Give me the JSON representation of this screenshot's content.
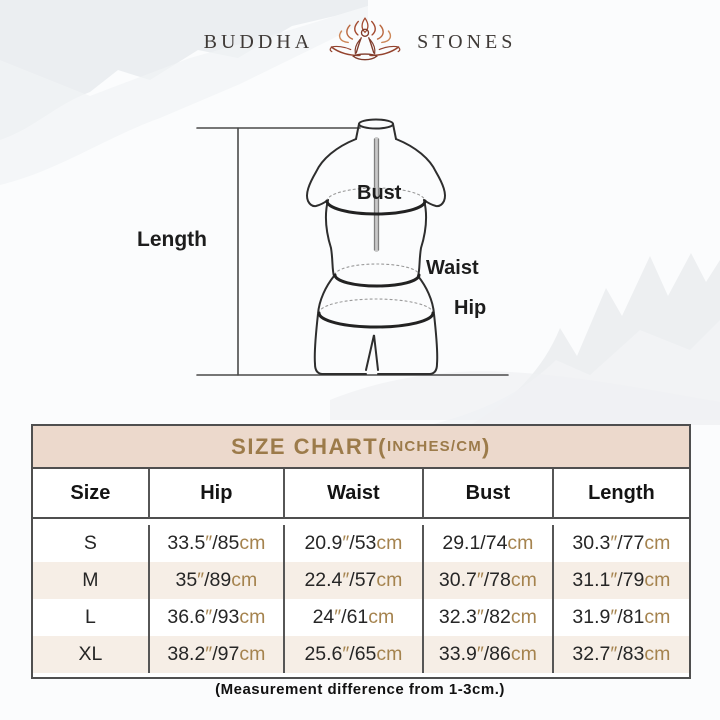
{
  "brand": {
    "left": "BUDDHA",
    "right": "STONES"
  },
  "diagram": {
    "length_label": "Length",
    "bust_label": "Bust",
    "waist_label": "Waist",
    "hip_label": "Hip"
  },
  "size_chart": {
    "title_main": "SIZE CHART(",
    "title_sub": "INCHES/CM",
    "title_close": ")",
    "columns": [
      "Size",
      "Hip",
      "Waist",
      "Bust",
      "Length"
    ],
    "rows": [
      {
        "size": "S",
        "values": [
          "33.5″/85cm",
          "20.9″/53cm",
          "29.1/74cm",
          "30.3″/77cm"
        ]
      },
      {
        "size": "M",
        "values": [
          "35″/89cm",
          "22.4″/57cm",
          "30.7″/78cm",
          "31.1″/79cm"
        ]
      },
      {
        "size": "L",
        "values": [
          "36.6″/93cm",
          "24″/61cm",
          "32.3″/82cm",
          "31.9″/81cm"
        ]
      },
      {
        "size": "XL",
        "values": [
          "38.2″/97cm",
          "25.6″/65cm",
          "33.9″/86cm",
          "32.7″/83cm"
        ]
      }
    ]
  },
  "footer_note": "(Measurement difference from 1-3cm.)",
  "colors": {
    "accent_gold": "#a5834e",
    "title_gold": "#9c7b4a",
    "band_beige": "#ecd9cc",
    "stripe_beige": "#f6eee6",
    "logo_red": "#9b4f38",
    "text_dark": "#222222"
  }
}
